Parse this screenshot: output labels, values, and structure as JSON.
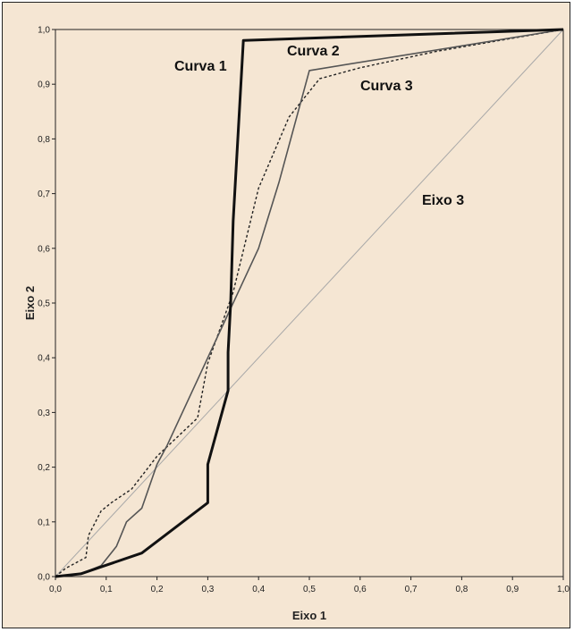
{
  "chart_data": {
    "type": "line",
    "title": "",
    "xlabel": "Eixo 1",
    "ylabel": "Eixo 2",
    "xlim": [
      0,
      1
    ],
    "ylim": [
      0,
      1
    ],
    "grid": false,
    "x_ticks": [
      "0,0",
      "0,1",
      "0,2",
      "0,3",
      "0,4",
      "0,5",
      "0,6",
      "0,7",
      "0,8",
      "0,9",
      "1,0"
    ],
    "y_ticks": [
      "0,0",
      "0,1",
      "0,2",
      "0,3",
      "0,4",
      "0,5",
      "0,6",
      "0,7",
      "0,8",
      "0,9",
      "1,0"
    ],
    "series": [
      {
        "name": "Curva 1",
        "color": "#111111",
        "style": "thick-solid",
        "points": [
          [
            0.0,
            0.0
          ],
          [
            0.05,
            0.005
          ],
          [
            0.17,
            0.043
          ],
          [
            0.3,
            0.135
          ],
          [
            0.3,
            0.205
          ],
          [
            0.34,
            0.34
          ],
          [
            0.34,
            0.41
          ],
          [
            0.345,
            0.5
          ],
          [
            0.35,
            0.65
          ],
          [
            0.37,
            0.98
          ],
          [
            1.0,
            1.0
          ]
        ]
      },
      {
        "name": "Curva 2",
        "color": "#555555",
        "style": "solid",
        "points": [
          [
            0.0,
            0.0
          ],
          [
            0.05,
            0.005
          ],
          [
            0.09,
            0.02
          ],
          [
            0.12,
            0.055
          ],
          [
            0.14,
            0.1
          ],
          [
            0.17,
            0.125
          ],
          [
            0.2,
            0.205
          ],
          [
            0.22,
            0.24
          ],
          [
            0.29,
            0.38
          ],
          [
            0.33,
            0.46
          ],
          [
            0.4,
            0.6
          ],
          [
            0.44,
            0.72
          ],
          [
            0.5,
            0.925
          ],
          [
            1.0,
            1.0
          ]
        ]
      },
      {
        "name": "Curva 3",
        "color": "#222222",
        "style": "dashed",
        "points": [
          [
            0.0,
            0.0
          ],
          [
            0.02,
            0.015
          ],
          [
            0.06,
            0.035
          ],
          [
            0.065,
            0.075
          ],
          [
            0.09,
            0.12
          ],
          [
            0.11,
            0.135
          ],
          [
            0.15,
            0.16
          ],
          [
            0.2,
            0.22
          ],
          [
            0.28,
            0.29
          ],
          [
            0.3,
            0.39
          ],
          [
            0.35,
            0.52
          ],
          [
            0.4,
            0.71
          ],
          [
            0.46,
            0.84
          ],
          [
            0.52,
            0.91
          ],
          [
            0.6,
            0.93
          ],
          [
            0.75,
            0.96
          ],
          [
            1.0,
            1.0
          ]
        ]
      },
      {
        "name": "Eixo 3",
        "color": "#a8a8a8",
        "style": "thin-solid",
        "points": [
          [
            0.0,
            0.0
          ],
          [
            1.0,
            1.0
          ]
        ]
      }
    ]
  }
}
